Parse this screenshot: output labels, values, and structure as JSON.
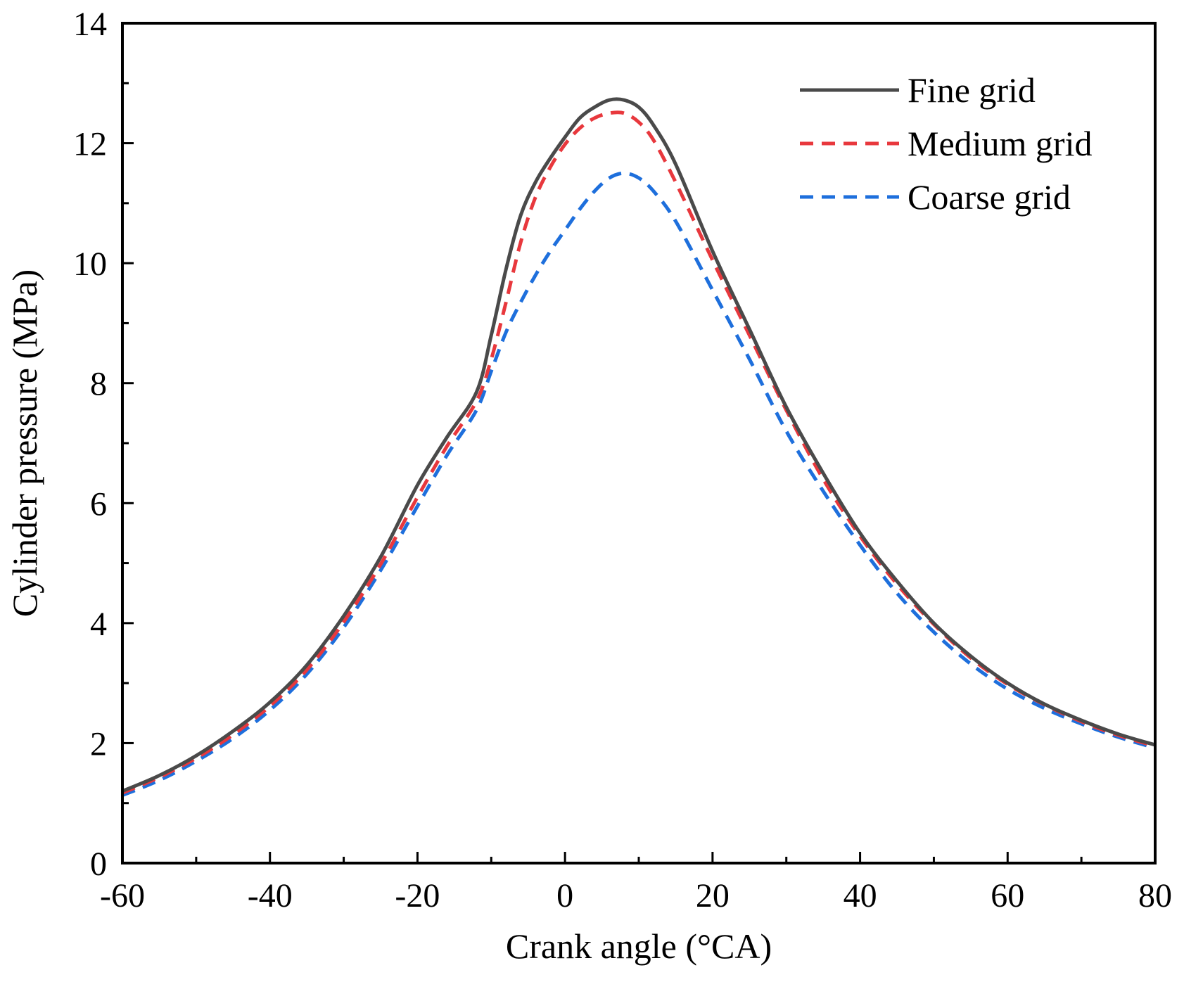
{
  "chart_data": {
    "type": "line",
    "title": "",
    "xlabel": "Crank angle (°CA)",
    "ylabel": "Cylinder pressure (MPa)",
    "xlim": [
      -60,
      80
    ],
    "ylim": [
      0,
      14
    ],
    "xticks": [
      -60,
      -40,
      -20,
      0,
      20,
      40,
      60,
      80
    ],
    "yticks": [
      0,
      2,
      4,
      6,
      8,
      10,
      12,
      14
    ],
    "xtick_labels": [
      "-60",
      "-40",
      "-20",
      "0",
      "20",
      "40",
      "60",
      "80"
    ],
    "ytick_labels": [
      "0",
      "2",
      "4",
      "6",
      "8",
      "10",
      "12",
      "14"
    ],
    "grid": false,
    "legend_position": "top-right",
    "x": [
      -60,
      -55,
      -50,
      -45,
      -40,
      -35,
      -30,
      -25,
      -20,
      -16,
      -12,
      -10,
      -8,
      -6,
      -4,
      -2,
      0,
      2,
      4,
      6,
      8,
      10,
      12,
      15,
      20,
      25,
      30,
      35,
      40,
      45,
      50,
      55,
      60,
      65,
      70,
      75,
      80
    ],
    "series": [
      {
        "name": "Fine grid",
        "color": "#4a4a4a",
        "dash": "solid",
        "values": [
          1.2,
          1.46,
          1.79,
          2.2,
          2.68,
          3.3,
          4.12,
          5.1,
          6.3,
          7.1,
          7.85,
          8.8,
          9.9,
          10.8,
          11.35,
          11.75,
          12.1,
          12.42,
          12.6,
          12.72,
          12.72,
          12.6,
          12.3,
          11.65,
          10.2,
          8.9,
          7.6,
          6.5,
          5.5,
          4.7,
          4.0,
          3.45,
          3.0,
          2.65,
          2.38,
          2.15,
          1.97
        ]
      },
      {
        "name": "Medium grid",
        "color": "#e8383d",
        "dash": "dashed",
        "values": [
          1.17,
          1.43,
          1.75,
          2.14,
          2.62,
          3.22,
          4.02,
          4.98,
          6.1,
          6.95,
          7.7,
          8.4,
          9.35,
          10.35,
          11.1,
          11.6,
          11.98,
          12.25,
          12.42,
          12.5,
          12.5,
          12.35,
          12.05,
          11.35,
          10.05,
          8.8,
          7.55,
          6.4,
          5.45,
          4.65,
          3.98,
          3.42,
          2.98,
          2.64,
          2.36,
          2.13,
          1.95
        ]
      },
      {
        "name": "Coarse grid",
        "color": "#1e6fdc",
        "dash": "dashed",
        "values": [
          1.13,
          1.38,
          1.7,
          2.08,
          2.55,
          3.15,
          3.93,
          4.88,
          5.95,
          6.8,
          7.55,
          8.2,
          8.85,
          9.35,
          9.8,
          10.2,
          10.55,
          10.9,
          11.2,
          11.42,
          11.5,
          11.42,
          11.2,
          10.7,
          9.55,
          8.4,
          7.2,
          6.2,
          5.3,
          4.5,
          3.85,
          3.32,
          2.9,
          2.58,
          2.32,
          2.1,
          1.92
        ]
      }
    ]
  }
}
